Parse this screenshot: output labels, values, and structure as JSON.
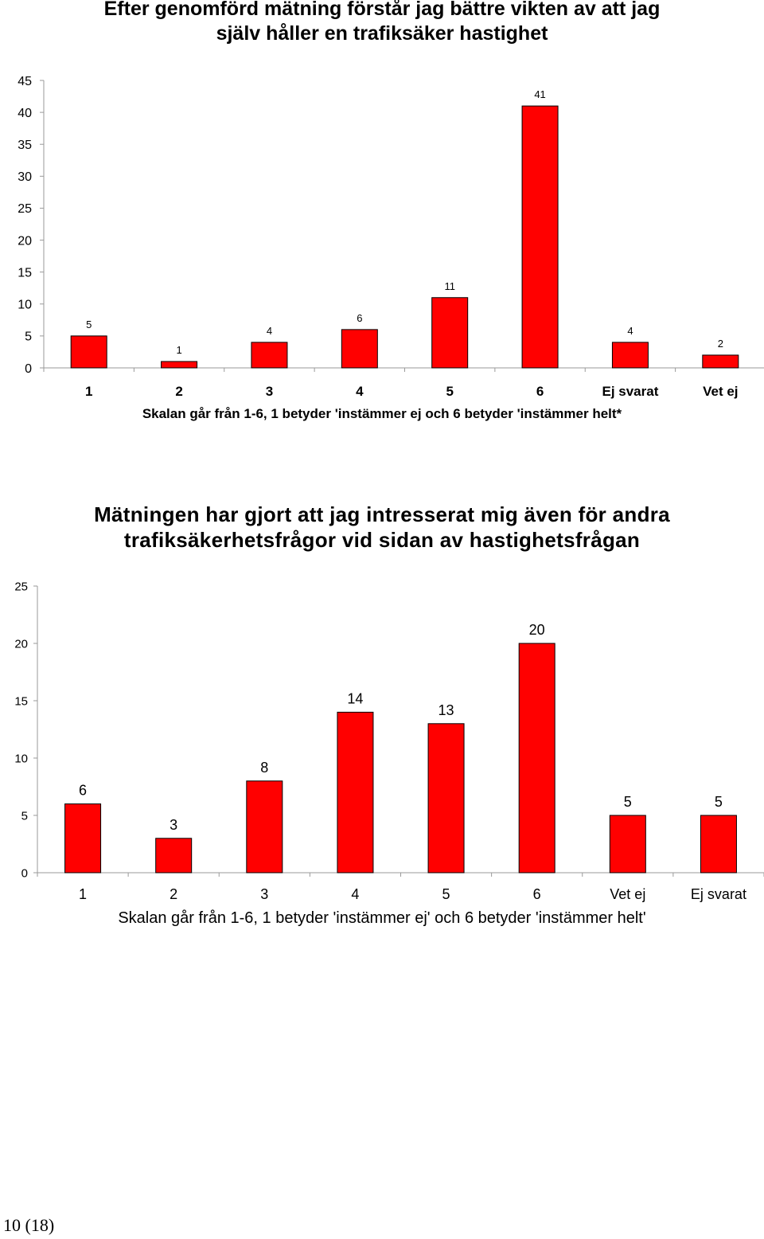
{
  "chart_data": [
    {
      "type": "bar",
      "title": "Efter genomförd mätning förstår jag bättre vikten av att jag själv håller en trafiksäker hastighet",
      "title_lines": [
        "Efter genomförd mätning förstår jag bättre vikten av att jag",
        "själv håller en trafiksäker hastighet"
      ],
      "xlabel": "Skalan går från 1-6, 1 betyder 'instämmer ej och 6 betyder 'instämmer helt*",
      "ylabel": "",
      "categories": [
        "1",
        "2",
        "3",
        "4",
        "5",
        "6",
        "Ej svarat",
        "Vet ej"
      ],
      "values": [
        5,
        1,
        4,
        6,
        11,
        41,
        4,
        2
      ],
      "ylim": [
        0,
        45
      ],
      "yticks": [
        0,
        5,
        10,
        15,
        20,
        25,
        30,
        35,
        40,
        45
      ],
      "bar_color": "#ff0000",
      "grid": false,
      "legend": "none"
    },
    {
      "type": "bar",
      "title": "Mätningen har gjort att jag intresserat mig även för andra trafiksäkerhetsfrågor vid sidan av hastighetsfrågan",
      "title_lines": [
        "Mätningen har gjort att jag intresserat mig även för andra",
        "trafiksäkerhetsfrågor vid sidan av hastighetsfrågan"
      ],
      "xlabel": "Skalan går från 1-6, 1 betyder 'instämmer ej' och 6 betyder 'instämmer helt'",
      "ylabel": "",
      "categories": [
        "1",
        "2",
        "3",
        "4",
        "5",
        "6",
        "Vet ej",
        "Ej svarat"
      ],
      "values": [
        6,
        3,
        8,
        14,
        13,
        20,
        5,
        5
      ],
      "ylim": [
        0,
        25
      ],
      "yticks": [
        0,
        5,
        10,
        15,
        20,
        25
      ],
      "bar_color": "#ff0000",
      "grid": false,
      "legend": "none"
    }
  ],
  "page": {
    "number": "10 (18)"
  }
}
